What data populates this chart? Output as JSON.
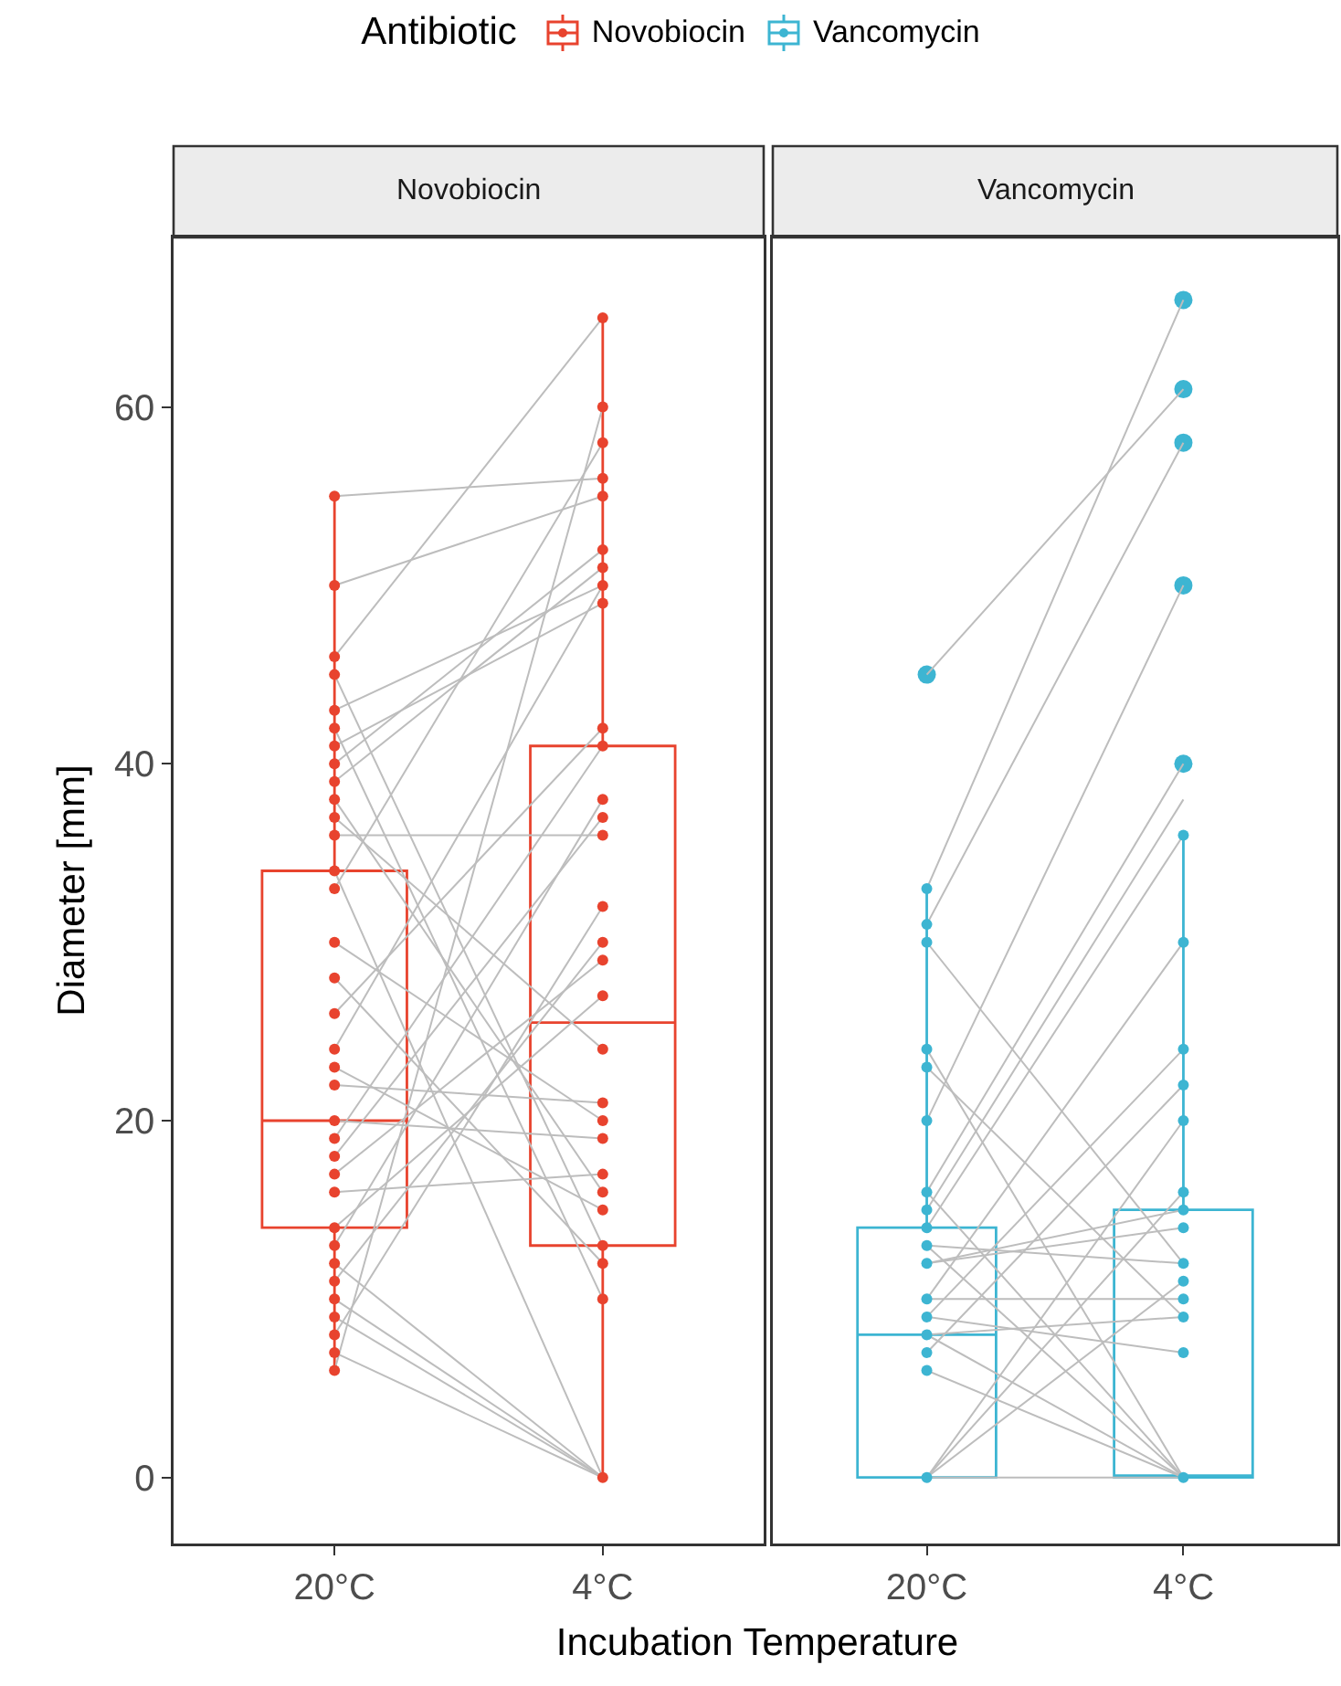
{
  "chart_data": [
    {
      "type": "box",
      "title": "Novobiocin",
      "xlabel": "Incubation Temperature",
      "ylabel": "Diameter [mm]",
      "legend": "top",
      "legend_title": "Antibiotic",
      "categories": [
        "20°C",
        "4°C"
      ],
      "ylim": [
        -3.7,
        69.5
      ],
      "yticks": [
        0,
        20,
        40,
        60
      ],
      "grid": false,
      "series": [
        {
          "type": "line",
          "color": "#bdbdbd",
          "x": [
            "20°C",
            "4°C"
          ],
          "values": [
            55,
            56
          ]
        },
        {
          "type": "line",
          "color": "#bdbdbd",
          "x": [
            "20°C",
            "4°C"
          ],
          "values": [
            50,
            55
          ]
        },
        {
          "type": "line",
          "color": "#bdbdbd",
          "x": [
            "20°C",
            "4°C"
          ],
          "values": [
            46,
            65
          ]
        },
        {
          "type": "line",
          "color": "#bdbdbd",
          "x": [
            "20°C",
            "4°C"
          ],
          "values": [
            45,
            13
          ]
        },
        {
          "type": "line",
          "color": "#bdbdbd",
          "x": [
            "20°C",
            "4°C"
          ],
          "values": [
            43,
            50
          ]
        },
        {
          "type": "line",
          "color": "#bdbdbd",
          "x": [
            "20°C",
            "4°C"
          ],
          "values": [
            42,
            10
          ]
        },
        {
          "type": "line",
          "color": "#bdbdbd",
          "x": [
            "20°C",
            "4°C"
          ],
          "values": [
            41,
            49
          ]
        },
        {
          "type": "line",
          "color": "#bdbdbd",
          "x": [
            "20°C",
            "4°C"
          ],
          "values": [
            40,
            52
          ]
        },
        {
          "type": "line",
          "color": "#bdbdbd",
          "x": [
            "20°C",
            "4°C"
          ],
          "values": [
            39,
            51
          ]
        },
        {
          "type": "line",
          "color": "#bdbdbd",
          "x": [
            "20°C",
            "4°C"
          ],
          "values": [
            38,
            16
          ]
        },
        {
          "type": "line",
          "color": "#bdbdbd",
          "x": [
            "20°C",
            "4°C"
          ],
          "values": [
            37,
            24
          ]
        },
        {
          "type": "line",
          "color": "#bdbdbd",
          "x": [
            "20°C",
            "4°C"
          ],
          "values": [
            36,
            36
          ]
        },
        {
          "type": "line",
          "color": "#bdbdbd",
          "x": [
            "20°C",
            "4°C"
          ],
          "values": [
            34,
            0
          ]
        },
        {
          "type": "line",
          "color": "#bdbdbd",
          "x": [
            "20°C",
            "4°C"
          ],
          "values": [
            33,
            58
          ]
        },
        {
          "type": "line",
          "color": "#bdbdbd",
          "x": [
            "20°C",
            "4°C"
          ],
          "values": [
            30,
            20
          ]
        },
        {
          "type": "line",
          "color": "#bdbdbd",
          "x": [
            "20°C",
            "4°C"
          ],
          "values": [
            28,
            12
          ]
        },
        {
          "type": "line",
          "color": "#bdbdbd",
          "x": [
            "20°C",
            "4°C"
          ],
          "values": [
            26,
            42
          ]
        },
        {
          "type": "line",
          "color": "#bdbdbd",
          "x": [
            "20°C",
            "4°C"
          ],
          "values": [
            24,
            50
          ]
        },
        {
          "type": "line",
          "color": "#bdbdbd",
          "x": [
            "20°C",
            "4°C"
          ],
          "values": [
            23,
            15
          ]
        },
        {
          "type": "line",
          "color": "#bdbdbd",
          "x": [
            "20°C",
            "4°C"
          ],
          "values": [
            22,
            21
          ]
        },
        {
          "type": "line",
          "color": "#bdbdbd",
          "x": [
            "20°C",
            "4°C"
          ],
          "values": [
            20,
            19
          ]
        },
        {
          "type": "line",
          "color": "#bdbdbd",
          "x": [
            "20°C",
            "4°C"
          ],
          "values": [
            19,
            41
          ]
        },
        {
          "type": "line",
          "color": "#bdbdbd",
          "x": [
            "20°C",
            "4°C"
          ],
          "values": [
            18,
            37
          ]
        },
        {
          "type": "line",
          "color": "#bdbdbd",
          "x": [
            "20°C",
            "4°C"
          ],
          "values": [
            17,
            29
          ]
        },
        {
          "type": "line",
          "color": "#bdbdbd",
          "x": [
            "20°C",
            "4°C"
          ],
          "values": [
            16,
            17
          ]
        },
        {
          "type": "line",
          "color": "#bdbdbd",
          "x": [
            "20°C",
            "4°C"
          ],
          "values": [
            14,
            27
          ]
        },
        {
          "type": "line",
          "color": "#bdbdbd",
          "x": [
            "20°C",
            "4°C"
          ],
          "values": [
            13,
            38
          ]
        },
        {
          "type": "line",
          "color": "#bdbdbd",
          "x": [
            "20°C",
            "4°C"
          ],
          "values": [
            12,
            0
          ]
        },
        {
          "type": "line",
          "color": "#bdbdbd",
          "x": [
            "20°C",
            "4°C"
          ],
          "values": [
            11,
            30
          ]
        },
        {
          "type": "line",
          "color": "#bdbdbd",
          "x": [
            "20°C",
            "4°C"
          ],
          "values": [
            10,
            0
          ]
        },
        {
          "type": "line",
          "color": "#bdbdbd",
          "x": [
            "20°C",
            "4°C"
          ],
          "values": [
            9,
            0
          ]
        },
        {
          "type": "line",
          "color": "#bdbdbd",
          "x": [
            "20°C",
            "4°C"
          ],
          "values": [
            8,
            32
          ]
        },
        {
          "type": "line",
          "color": "#bdbdbd",
          "x": [
            "20°C",
            "4°C"
          ],
          "values": [
            7,
            0
          ]
        },
        {
          "type": "line",
          "color": "#bdbdbd",
          "x": [
            "20°C",
            "4°C"
          ],
          "values": [
            6,
            60
          ]
        },
        {
          "name": "Novobiocin",
          "color": "#e8432e",
          "boxes": [
            {
              "low": 6,
              "q1": 14,
              "median": 20,
              "q3": 34,
              "high": 55
            },
            {
              "low": 0,
              "q1": 13,
              "median": 25.5,
              "q3": 41,
              "high": 65
            }
          ]
        },
        {
          "type": "scatter",
          "marker": "circle",
          "color": "#e8432e",
          "x": [
            "20°C",
            "20°C",
            "20°C",
            "20°C",
            "20°C",
            "20°C",
            "20°C",
            "20°C",
            "20°C",
            "20°C",
            "20°C",
            "20°C",
            "20°C",
            "20°C",
            "20°C",
            "20°C",
            "20°C",
            "20°C",
            "20°C",
            "20°C",
            "20°C",
            "20°C",
            "20°C",
            "20°C",
            "20°C",
            "20°C",
            "20°C",
            "20°C",
            "20°C",
            "20°C",
            "20°C",
            "20°C",
            "20°C",
            "20°C",
            "4°C",
            "4°C",
            "4°C",
            "4°C",
            "4°C",
            "4°C",
            "4°C",
            "4°C",
            "4°C",
            "4°C",
            "4°C",
            "4°C",
            "4°C",
            "4°C",
            "4°C",
            "4°C",
            "4°C",
            "4°C",
            "4°C",
            "4°C",
            "4°C",
            "4°C",
            "4°C",
            "4°C",
            "4°C",
            "4°C",
            "4°C",
            "4°C",
            "4°C"
          ],
          "values": [
            55,
            50,
            46,
            45,
            43,
            42,
            41,
            40,
            39,
            38,
            37,
            36,
            34,
            33,
            30,
            28,
            26,
            24,
            23,
            22,
            20,
            19,
            18,
            17,
            16,
            14,
            13,
            12,
            11,
            10,
            9,
            8,
            7,
            6,
            65,
            60,
            58,
            56,
            55,
            52,
            51,
            50,
            49,
            42,
            41,
            38,
            37,
            36,
            32,
            30,
            29,
            27,
            24,
            21,
            20,
            19,
            17,
            16,
            15,
            13,
            12,
            10,
            0
          ]
        }
      ]
    },
    {
      "type": "box",
      "title": "Vancomycin",
      "legend": "top",
      "categories": [
        "20°C",
        "4°C"
      ],
      "ylim": [
        -3.7,
        69.5
      ],
      "yticks": [
        0,
        20,
        40,
        60
      ],
      "tick_labels": "x",
      "grid": false,
      "series": [
        {
          "type": "line",
          "color": "#bdbdbd",
          "x": [
            "20°C",
            "4°C"
          ],
          "values": [
            45,
            61
          ]
        },
        {
          "type": "line",
          "color": "#bdbdbd",
          "x": [
            "20°C",
            "4°C"
          ],
          "values": [
            33,
            66
          ]
        },
        {
          "type": "line",
          "color": "#bdbdbd",
          "x": [
            "20°C",
            "4°C"
          ],
          "values": [
            31,
            58
          ]
        },
        {
          "type": "line",
          "color": "#bdbdbd",
          "x": [
            "20°C",
            "4°C"
          ],
          "values": [
            30,
            12
          ]
        },
        {
          "type": "line",
          "color": "#bdbdbd",
          "x": [
            "20°C",
            "4°C"
          ],
          "values": [
            24,
            0
          ]
        },
        {
          "type": "line",
          "color": "#bdbdbd",
          "x": [
            "20°C",
            "4°C"
          ],
          "values": [
            23,
            9
          ]
        },
        {
          "type": "line",
          "color": "#bdbdbd",
          "x": [
            "20°C",
            "4°C"
          ],
          "values": [
            20,
            50
          ]
        },
        {
          "type": "line",
          "color": "#bdbdbd",
          "x": [
            "20°C",
            "4°C"
          ],
          "values": [
            16,
            40
          ]
        },
        {
          "type": "line",
          "color": "#bdbdbd",
          "x": [
            "20°C",
            "4°C"
          ],
          "values": [
            15,
            38
          ]
        },
        {
          "type": "line",
          "color": "#bdbdbd",
          "x": [
            "20°C",
            "4°C"
          ],
          "values": [
            14,
            36
          ]
        },
        {
          "type": "line",
          "color": "#bdbdbd",
          "x": [
            "20°C",
            "4°C"
          ],
          "values": [
            13,
            0
          ]
        },
        {
          "type": "line",
          "color": "#bdbdbd",
          "x": [
            "20°C",
            "4°C"
          ],
          "values": [
            12,
            14
          ]
        },
        {
          "type": "line",
          "color": "#bdbdbd",
          "x": [
            "20°C",
            "4°C"
          ],
          "values": [
            10,
            30
          ]
        },
        {
          "type": "line",
          "color": "#bdbdbd",
          "x": [
            "20°C",
            "4°C"
          ],
          "values": [
            9,
            24
          ]
        },
        {
          "type": "line",
          "color": "#bdbdbd",
          "x": [
            "20°C",
            "4°C"
          ],
          "values": [
            8,
            0
          ]
        },
        {
          "type": "line",
          "color": "#bdbdbd",
          "x": [
            "20°C",
            "4°C"
          ],
          "values": [
            7,
            22
          ]
        },
        {
          "type": "line",
          "color": "#bdbdbd",
          "x": [
            "20°C",
            "4°C"
          ],
          "values": [
            6,
            0
          ]
        },
        {
          "type": "line",
          "color": "#bdbdbd",
          "x": [
            "20°C",
            "4°C"
          ],
          "values": [
            0,
            20
          ]
        },
        {
          "type": "line",
          "color": "#bdbdbd",
          "x": [
            "20°C",
            "4°C"
          ],
          "values": [
            0,
            16
          ]
        },
        {
          "type": "line",
          "color": "#bdbdbd",
          "x": [
            "20°C",
            "4°C"
          ],
          "values": [
            0,
            11
          ]
        },
        {
          "type": "line",
          "color": "#bdbdbd",
          "x": [
            "20°C",
            "4°C"
          ],
          "values": [
            0,
            0
          ]
        },
        {
          "type": "line",
          "color": "#bdbdbd",
          "x": [
            "20°C",
            "4°C"
          ],
          "values": [
            12,
            15
          ]
        },
        {
          "type": "line",
          "color": "#bdbdbd",
          "x": [
            "20°C",
            "4°C"
          ],
          "values": [
            9,
            7
          ]
        },
        {
          "type": "line",
          "color": "#bdbdbd",
          "x": [
            "20°C",
            "4°C"
          ],
          "values": [
            13,
            12
          ]
        },
        {
          "type": "line",
          "color": "#bdbdbd",
          "x": [
            "20°C",
            "4°C"
          ],
          "values": [
            16,
            0
          ]
        },
        {
          "type": "line",
          "color": "#bdbdbd",
          "x": [
            "20°C",
            "4°C"
          ],
          "values": [
            10,
            10
          ]
        },
        {
          "type": "line",
          "color": "#bdbdbd",
          "x": [
            "20°C",
            "4°C"
          ],
          "values": [
            8,
            9
          ]
        },
        {
          "name": "Vancomycin",
          "color": "#3db5d2",
          "boxes": [
            {
              "low": 0,
              "q1": 0,
              "median": 8,
              "q3": 14,
              "high": 33,
              "outliers": [
                45
              ]
            },
            {
              "low": 0,
              "q1": 0,
              "median": 0,
              "q3": 15,
              "high": 36,
              "outliers": [
                40,
                50,
                58,
                61,
                66
              ]
            }
          ]
        },
        {
          "type": "scatter",
          "marker": "circle",
          "color": "#3db5d2",
          "x": [
            "20°C",
            "20°C",
            "20°C",
            "20°C",
            "20°C",
            "20°C",
            "20°C",
            "20°C",
            "20°C",
            "20°C",
            "20°C",
            "20°C",
            "20°C",
            "20°C",
            "20°C",
            "20°C",
            "20°C",
            "4°C",
            "4°C",
            "4°C",
            "4°C",
            "4°C",
            "4°C",
            "4°C",
            "4°C",
            "4°C",
            "4°C",
            "4°C",
            "4°C",
            "4°C",
            "4°C"
          ],
          "values": [
            33,
            31,
            30,
            24,
            23,
            20,
            16,
            15,
            14,
            13,
            12,
            10,
            9,
            8,
            7,
            6,
            0,
            36,
            30,
            24,
            22,
            20,
            16,
            15,
            14,
            12,
            11,
            10,
            9,
            7,
            0
          ]
        }
      ]
    }
  ]
}
